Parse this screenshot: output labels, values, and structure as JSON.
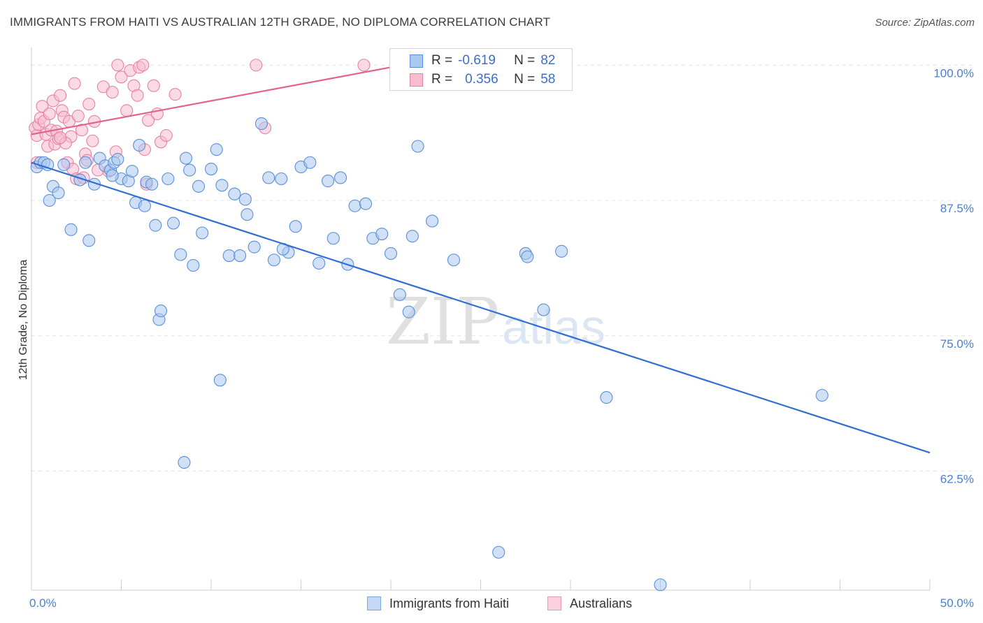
{
  "header": {
    "title": "IMMIGRANTS FROM HAITI VS AUSTRALIAN 12TH GRADE, NO DIPLOMA CORRELATION CHART",
    "source": "Source: ZipAtlas.com"
  },
  "watermark": {
    "zip": "ZIP",
    "atlas": "atlas"
  },
  "legend": {
    "rows": [
      {
        "r_label": "R =",
        "r_value": "-0.619",
        "n_label": "N =",
        "n_value": "82"
      },
      {
        "r_label": "R =",
        "r_value": "0.356",
        "n_label": "N =",
        "n_value": "58"
      }
    ]
  },
  "chart_data": {
    "type": "scatter",
    "title": "IMMIGRANTS FROM HAITI VS AUSTRALIAN 12TH GRADE, NO DIPLOMA CORRELATION CHART",
    "xlabel": "",
    "ylabel": "12th Grade, No Diploma",
    "xlim": [
      0,
      50
    ],
    "ylim": [
      51.5,
      101.5
    ],
    "x_tick_labels": [
      "0.0%",
      "50.0%"
    ],
    "y_ticks": [
      {
        "value": 100,
        "label": "100.0%"
      },
      {
        "value": 87.5,
        "label": "87.5%"
      },
      {
        "value": 75,
        "label": "75.0%"
      },
      {
        "value": 62.5,
        "label": "62.5%"
      }
    ],
    "grid": true,
    "legend_position": "top-center",
    "colors": {
      "haiti_fill": "#aac8f0",
      "haiti_stroke": "#5a8fd8",
      "haiti_line": "#2f6fd3",
      "aus_fill": "#f7bcd0",
      "aus_stroke": "#e8829f",
      "aus_line": "#e2628b",
      "grid": "#e4e4e4",
      "axis": "#cccccc"
    },
    "series": [
      {
        "name": "Immigrants from Haiti",
        "r": -0.619,
        "n": 82,
        "trend": {
          "x": [
            0.0,
            50.0
          ],
          "y": [
            91.0,
            64.2
          ]
        },
        "points": [
          [
            0.3,
            90.6
          ],
          [
            0.5,
            91.0
          ],
          [
            0.7,
            91.0
          ],
          [
            0.9,
            90.8
          ],
          [
            1.0,
            87.5
          ],
          [
            1.2,
            88.8
          ],
          [
            1.5,
            88.2
          ],
          [
            1.8,
            90.8
          ],
          [
            2.2,
            84.8
          ],
          [
            2.7,
            89.4
          ],
          [
            3.2,
            83.8
          ],
          [
            3.5,
            89.0
          ],
          [
            3.8,
            91.4
          ],
          [
            4.1,
            90.7
          ],
          [
            4.4,
            90.3
          ],
          [
            4.6,
            91.0
          ],
          [
            4.8,
            91.3
          ],
          [
            5.0,
            89.5
          ],
          [
            5.4,
            89.3
          ],
          [
            5.6,
            90.2
          ],
          [
            5.8,
            87.3
          ],
          [
            6.0,
            92.6
          ],
          [
            6.4,
            89.2
          ],
          [
            6.7,
            89.0
          ],
          [
            6.9,
            85.2
          ],
          [
            7.1,
            76.5
          ],
          [
            7.2,
            77.3
          ],
          [
            7.6,
            89.5
          ],
          [
            7.9,
            85.4
          ],
          [
            8.3,
            82.5
          ],
          [
            8.6,
            91.4
          ],
          [
            8.8,
            90.3
          ],
          [
            9.0,
            81.5
          ],
          [
            9.3,
            88.8
          ],
          [
            9.5,
            84.5
          ],
          [
            10.0,
            90.4
          ],
          [
            10.3,
            92.2
          ],
          [
            10.6,
            88.9
          ],
          [
            11.0,
            82.4
          ],
          [
            11.3,
            88.1
          ],
          [
            11.6,
            82.4
          ],
          [
            11.9,
            87.6
          ],
          [
            12.4,
            83.2
          ],
          [
            12.8,
            94.6
          ],
          [
            13.2,
            89.6
          ],
          [
            13.5,
            82.0
          ],
          [
            13.9,
            89.5
          ],
          [
            14.3,
            82.7
          ],
          [
            14.7,
            85.1
          ],
          [
            15.0,
            90.6
          ],
          [
            15.5,
            91.0
          ],
          [
            16.0,
            81.7
          ],
          [
            16.5,
            89.3
          ],
          [
            16.8,
            84.0
          ],
          [
            17.2,
            89.6
          ],
          [
            17.6,
            81.6
          ],
          [
            18.0,
            87.0
          ],
          [
            18.6,
            87.2
          ],
          [
            19.0,
            84.0
          ],
          [
            19.5,
            84.4
          ],
          [
            20.0,
            82.6
          ],
          [
            20.5,
            78.8
          ],
          [
            21.0,
            77.2
          ],
          [
            21.2,
            84.2
          ],
          [
            21.5,
            92.5
          ],
          [
            22.3,
            85.6
          ],
          [
            23.5,
            82.0
          ],
          [
            26.0,
            55.0
          ],
          [
            27.5,
            82.6
          ],
          [
            27.6,
            82.3
          ],
          [
            28.5,
            77.4
          ],
          [
            29.5,
            82.8
          ],
          [
            32.0,
            69.3
          ],
          [
            35.0,
            52.0
          ],
          [
            44.0,
            69.5
          ],
          [
            10.5,
            70.9
          ],
          [
            8.5,
            63.3
          ],
          [
            12.0,
            86.2
          ],
          [
            14.0,
            83.0
          ],
          [
            4.5,
            89.8
          ],
          [
            6.3,
            87.0
          ],
          [
            3.0,
            91.0
          ]
        ]
      },
      {
        "name": "Australians",
        "r": 0.356,
        "n": 58,
        "trend": {
          "x": [
            0.0,
            20.0
          ],
          "y": [
            93.6,
            99.8
          ]
        },
        "points": [
          [
            0.2,
            94.2
          ],
          [
            0.3,
            93.5
          ],
          [
            0.4,
            94.5
          ],
          [
            0.5,
            95.1
          ],
          [
            0.6,
            96.2
          ],
          [
            0.7,
            94.8
          ],
          [
            0.8,
            93.6
          ],
          [
            0.9,
            92.5
          ],
          [
            1.0,
            95.5
          ],
          [
            1.1,
            94.0
          ],
          [
            1.2,
            96.7
          ],
          [
            1.3,
            92.7
          ],
          [
            1.4,
            93.9
          ],
          [
            1.5,
            93.2
          ],
          [
            1.6,
            97.2
          ],
          [
            1.7,
            95.8
          ],
          [
            1.8,
            95.2
          ],
          [
            2.0,
            91.0
          ],
          [
            2.1,
            94.8
          ],
          [
            2.2,
            93.4
          ],
          [
            2.3,
            90.4
          ],
          [
            2.4,
            98.3
          ],
          [
            2.5,
            89.5
          ],
          [
            2.6,
            95.3
          ],
          [
            2.8,
            94.0
          ],
          [
            3.0,
            91.8
          ],
          [
            3.2,
            96.4
          ],
          [
            3.4,
            93.0
          ],
          [
            3.5,
            94.8
          ],
          [
            3.7,
            90.3
          ],
          [
            4.0,
            98.0
          ],
          [
            4.3,
            90.2
          ],
          [
            4.5,
            97.5
          ],
          [
            4.7,
            92.0
          ],
          [
            4.8,
            100.0
          ],
          [
            5.0,
            98.9
          ],
          [
            5.3,
            95.8
          ],
          [
            5.5,
            99.5
          ],
          [
            5.7,
            98.1
          ],
          [
            5.9,
            97.2
          ],
          [
            6.0,
            99.8
          ],
          [
            6.2,
            100.0
          ],
          [
            6.3,
            92.2
          ],
          [
            6.5,
            94.9
          ],
          [
            6.8,
            98.1
          ],
          [
            7.0,
            95.5
          ],
          [
            7.2,
            92.9
          ],
          [
            7.5,
            93.5
          ],
          [
            8.0,
            97.3
          ],
          [
            12.5,
            100.0
          ],
          [
            13.0,
            94.2
          ],
          [
            18.5,
            100.0
          ],
          [
            1.9,
            92.8
          ],
          [
            3.1,
            91.2
          ],
          [
            2.9,
            89.6
          ],
          [
            6.4,
            89.0
          ],
          [
            0.3,
            91.0
          ],
          [
            1.6,
            93.3
          ]
        ]
      }
    ]
  }
}
